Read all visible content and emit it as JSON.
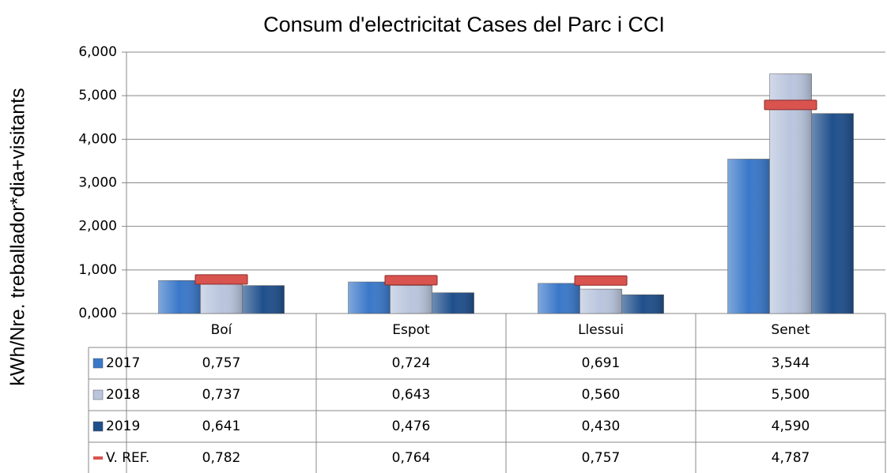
{
  "chart_data": {
    "type": "bar",
    "title": "Consum d'electricitat Cases del Parc i CCI",
    "y_label": "kWh/Nre. treballador*dia+visitants",
    "categories": [
      "Boí",
      "Espot",
      "Llessui",
      "Senet"
    ],
    "series": [
      {
        "name": "2017",
        "color": "#3a78c9",
        "type": "bar",
        "values": [
          0.757,
          0.724,
          0.691,
          3.544
        ],
        "value_labels": [
          "0,757",
          "0,724",
          "0,691",
          "3,544"
        ]
      },
      {
        "name": "2018",
        "color": "#b9c5dd",
        "type": "bar",
        "values": [
          0.737,
          0.643,
          0.56,
          5.5
        ],
        "value_labels": [
          "0,737",
          "0,643",
          "0,560",
          "5,500"
        ]
      },
      {
        "name": "2019",
        "color": "#1f4f8c",
        "type": "bar",
        "values": [
          0.641,
          0.476,
          0.43,
          4.59
        ],
        "value_labels": [
          "0,641",
          "0,476",
          "0,430",
          "4,590"
        ]
      },
      {
        "name": "V. REF.",
        "color": "#d9534f",
        "type": "marker",
        "values": [
          0.782,
          0.764,
          0.757,
          4.787
        ],
        "value_labels": [
          "0,782",
          "0,764",
          "0,757",
          "4,787"
        ]
      }
    ],
    "ylim": [
      0,
      6
    ],
    "yticks": [
      {
        "value": 0,
        "label": "0,000"
      },
      {
        "value": 1,
        "label": "1,000"
      },
      {
        "value": 2,
        "label": "2,000"
      },
      {
        "value": 3,
        "label": "3,000"
      },
      {
        "value": 4,
        "label": "4,000"
      },
      {
        "value": 5,
        "label": "5,000"
      },
      {
        "value": 6,
        "label": "6,000"
      }
    ],
    "grid": true
  }
}
